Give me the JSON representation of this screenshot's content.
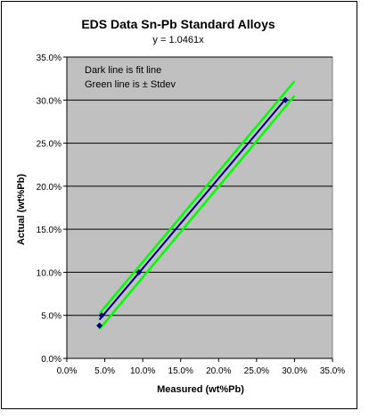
{
  "chart_data": {
    "type": "scatter",
    "title": "EDS Data Sn-Pb Standard Alloys",
    "subtitle": "y = 1.0461x",
    "xlabel": "Measured (wt%Pb)",
    "ylabel": "Actual (wt%Pb)",
    "xlim": [
      0,
      35
    ],
    "ylim": [
      0,
      35
    ],
    "x_ticks": [
      "0.0%",
      "5.0%",
      "10.0%",
      "15.0%",
      "20.0%",
      "25.0%",
      "30.0%",
      "35.0%"
    ],
    "y_ticks": [
      "0.0%",
      "5.0%",
      "10.0%",
      "15.0%",
      "20.0%",
      "25.0%",
      "30.0%",
      "35.0%"
    ],
    "grid": "horizontal",
    "annotations": [
      "Dark line is fit line",
      "Green line is ± Stdev"
    ],
    "series": [
      {
        "kind": "points",
        "x": [
          4.3,
          4.6,
          9.5,
          28.8
        ],
        "y": [
          3.8,
          5.0,
          10.0,
          30.0
        ]
      },
      {
        "kind": "line",
        "x": [
          4.3,
          28.8
        ],
        "y": [
          4.5,
          30.1
        ]
      },
      {
        "kind": "line",
        "x": [
          4.3,
          30.0
        ],
        "y": [
          5.2,
          32.2
        ]
      },
      {
        "kind": "line",
        "x": [
          4.3,
          30.0
        ],
        "y": [
          3.4,
          30.5
        ]
      }
    ],
    "colors": {
      "plot_bg": "#c0c0c0",
      "fit": "#000080",
      "stdev": "#00ff00",
      "points": "#000080"
    }
  }
}
